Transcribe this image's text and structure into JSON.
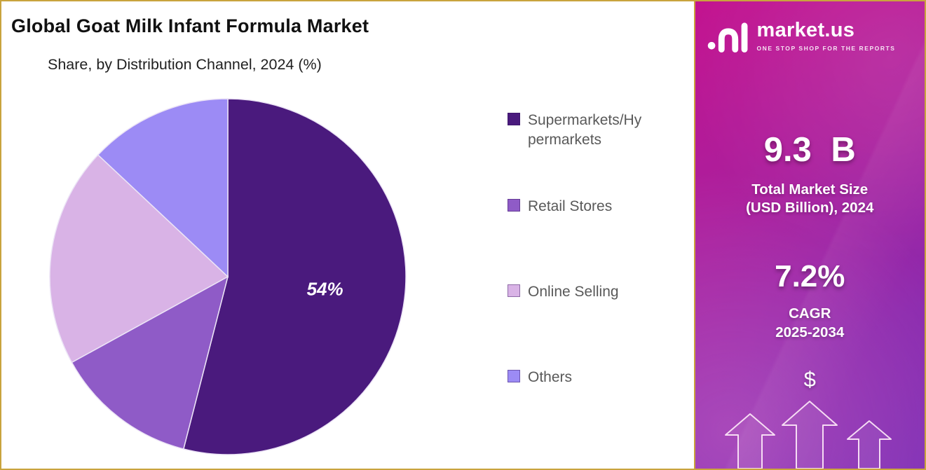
{
  "header": {
    "title": "Global Goat Milk Infant Formula Market",
    "subtitle": "Share, by Distribution Channel, 2024 (%)"
  },
  "chart_data": {
    "type": "pie",
    "title": "Global Goat Milk Infant Formula Market",
    "subtitle": "Share, by Distribution Channel, 2024 (%)",
    "unit": "%",
    "start_angle_deg": 0,
    "direction": "clockwise",
    "legend_position": "right",
    "slices": [
      {
        "label": "Supermarkets/Hypermarkets",
        "value": 54,
        "color": "#4a1a7d",
        "data_label": "54%"
      },
      {
        "label": "Retail Stores",
        "value": 13,
        "color": "#8f5bc7",
        "data_label": ""
      },
      {
        "label": "Online Selling",
        "value": 20,
        "color": "#d9b3e6",
        "data_label": ""
      },
      {
        "label": "Others",
        "value": 13,
        "color": "#9c8bf5",
        "data_label": ""
      }
    ]
  },
  "sidebar": {
    "brand": "market.us",
    "tagline": "ONE STOP SHOP FOR THE REPORTS",
    "market_size_value": "9.3 B",
    "market_size_label_lines": [
      "Total Market Size",
      "(USD Billion), 2024"
    ],
    "cagr_value": "7.2%",
    "cagr_label": "CAGR",
    "cagr_period": "2025-2034",
    "currency_symbol": "$"
  },
  "colors": {
    "gold_border": "#c9a43d",
    "panel_gradient_start": "#c3128f",
    "panel_gradient_end": "#7d2fb5",
    "legend_text": "#595959",
    "pie_data_label": "#ffffff"
  }
}
